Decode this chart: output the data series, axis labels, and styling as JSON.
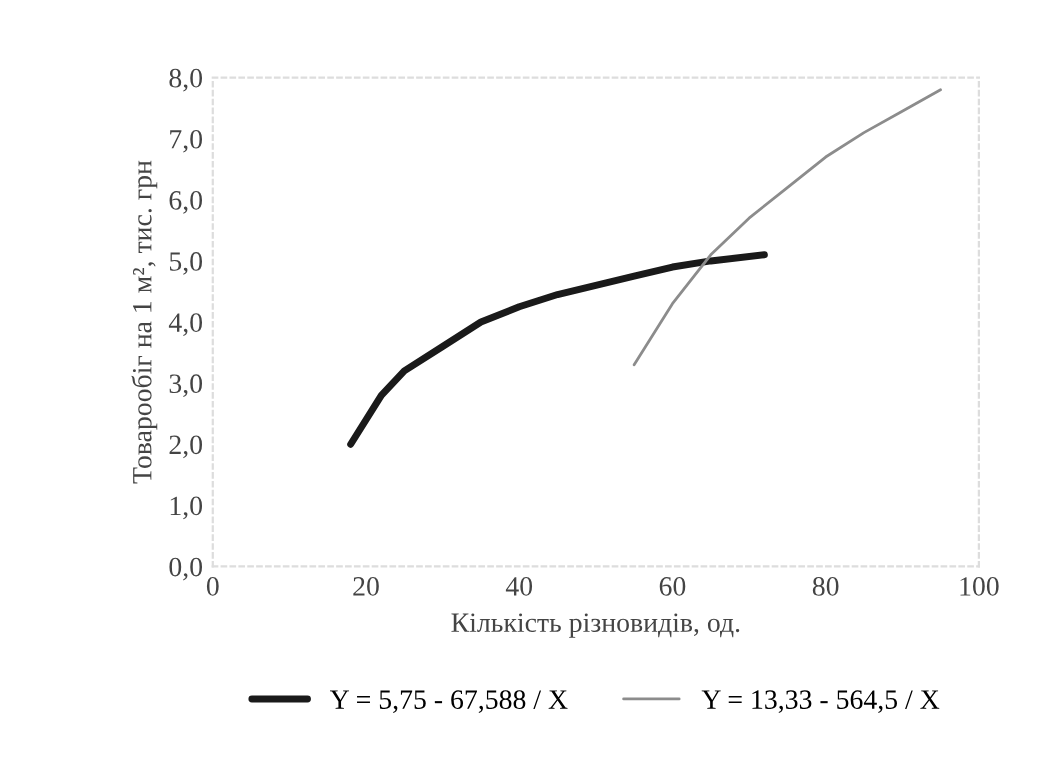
{
  "chart_data": {
    "type": "line",
    "xlabel": "Кількість різновидів, од.",
    "ylabel": "Товарообіг на 1 м², тис. грн",
    "xlim": [
      0,
      100
    ],
    "xticks": [
      0,
      20,
      40,
      60,
      80,
      100
    ],
    "ylim": [
      0,
      8
    ],
    "yticks": [
      {
        "value": 0,
        "label": "0,0"
      },
      {
        "value": 1,
        "label": "1,0"
      },
      {
        "value": 2,
        "label": "2,0"
      },
      {
        "value": 3,
        "label": "3,0"
      },
      {
        "value": 4,
        "label": "4,0"
      },
      {
        "value": 5,
        "label": "5,0"
      },
      {
        "value": 6,
        "label": "6,0"
      },
      {
        "value": 7,
        "label": "7,0"
      },
      {
        "value": 8,
        "label": "8,0"
      }
    ],
    "grid": false,
    "legend": "bottom",
    "marker": "none",
    "line_style": "solid",
    "series": [
      {
        "name": "Y = 5,75 - 67,588 / X",
        "color": "#1a1a1a",
        "x": [
          18,
          22,
          25,
          30,
          35,
          40,
          45,
          50,
          55,
          60,
          65,
          72
        ],
        "values": [
          2.0,
          2.8,
          3.2,
          3.6,
          4.0,
          4.25,
          4.45,
          4.6,
          4.75,
          4.9,
          5.0,
          5.1
        ]
      },
      {
        "name": "Y = 13,33 - 564,5 / X",
        "color": "#8c8c8c",
        "x": [
          55,
          60,
          65,
          70,
          75,
          80,
          85,
          90,
          95
        ],
        "values": [
          3.3,
          4.3,
          5.1,
          5.7,
          6.2,
          6.7,
          7.1,
          7.45,
          7.8
        ]
      }
    ]
  }
}
